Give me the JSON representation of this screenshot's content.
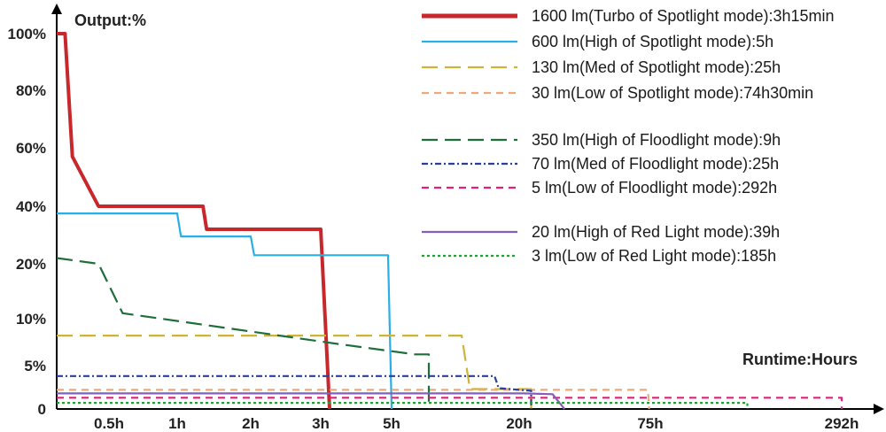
{
  "chart_data": {
    "type": "line",
    "ylabel": "Output:%",
    "xlabel": "Runtime:Hours",
    "y_ticks": [
      "100%",
      "80%",
      "60%",
      "40%",
      "20%",
      "10%",
      "5%",
      "0"
    ],
    "x_ticks": [
      "0.5h",
      "1h",
      "2h",
      "3h",
      "5h",
      "20h",
      "75h",
      "292h"
    ],
    "x_scale": "piecewise (non-linear)",
    "y_scale": "piecewise (non-linear)",
    "grid": false,
    "legend_position": "top-right",
    "series": [
      {
        "name": "1600 lm(Turbo of Spotlight mode):3h15min",
        "color": "#c8282c",
        "dash": "solid",
        "points": [
          [
            0,
            100
          ],
          [
            0.08,
            100
          ],
          [
            0.15,
            57
          ],
          [
            0.4,
            40
          ],
          [
            1.35,
            40
          ],
          [
            1.4,
            32
          ],
          [
            3.0,
            32
          ],
          [
            3.25,
            0
          ]
        ]
      },
      {
        "name": "600 lm(High of Spotlight mode):5h",
        "color": "#2aaee6",
        "dash": "solid",
        "points": [
          [
            0,
            37.5
          ],
          [
            1.0,
            37.5
          ],
          [
            1.05,
            29.5
          ],
          [
            2.0,
            29.5
          ],
          [
            2.05,
            23
          ],
          [
            4.9,
            23
          ],
          [
            5.0,
            0
          ]
        ]
      },
      {
        "name": "130 lm(Med of Spotlight mode):25h",
        "color": "#cdb33a",
        "dash": "long-dash",
        "points": [
          [
            0,
            8.2
          ],
          [
            13,
            8.2
          ],
          [
            14,
            2.3
          ],
          [
            25,
            2.3
          ],
          [
            25,
            0
          ]
        ]
      },
      {
        "name": "30 lm(Low of Spotlight mode):74h30min",
        "color": "#f0a878",
        "dash": "dash",
        "points": [
          [
            0,
            2.2
          ],
          [
            74,
            2.2
          ],
          [
            74.5,
            0
          ]
        ]
      },
      {
        "name": "350 lm(High of Floodlight mode):9h",
        "color": "#1e6e3a",
        "dash": "long-dash",
        "points": [
          [
            0,
            22
          ],
          [
            0.4,
            20
          ],
          [
            0.6,
            11
          ],
          [
            3.5,
            7.3
          ],
          [
            7.5,
            6.2
          ],
          [
            9,
            6.2
          ],
          [
            9,
            0
          ]
        ]
      },
      {
        "name": "70 lm(Med of Floodlight mode):25h",
        "color": "#2a3ea0",
        "dash": "dash-dot",
        "points": [
          [
            0,
            3.8
          ],
          [
            17,
            3.8
          ],
          [
            17.5,
            2.4
          ],
          [
            25,
            2.1
          ],
          [
            25,
            0
          ]
        ]
      },
      {
        "name": "5 lm(Low of Floodlight mode):292h",
        "color": "#e0207a",
        "dash": "dash",
        "points": [
          [
            0,
            1.3
          ],
          [
            292,
            1.3
          ],
          [
            292,
            0
          ]
        ]
      },
      {
        "name": "20 lm(High of Red Light mode):39h",
        "color": "#8060b8",
        "dash": "solid",
        "points": [
          [
            0,
            1.8
          ],
          [
            22,
            1.8
          ],
          [
            34,
            1.7
          ],
          [
            39,
            0
          ]
        ]
      },
      {
        "name": "3 lm(Low of  Red Light mode):185h",
        "color": "#2a9a3a",
        "dash": "dotted",
        "points": [
          [
            0,
            0.7
          ],
          [
            185,
            0.7
          ],
          [
            185,
            0
          ]
        ]
      }
    ]
  }
}
